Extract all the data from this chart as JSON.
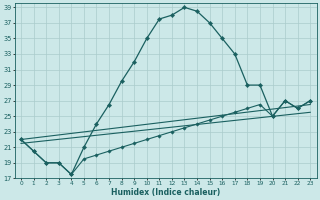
{
  "xlabel": "Humidex (Indice chaleur)",
  "bg_color": "#cce8e8",
  "grid_color": "#aacccc",
  "line_color": "#1a6060",
  "xlim": [
    -0.5,
    23.5
  ],
  "ylim": [
    17,
    39.5
  ],
  "yticks": [
    17,
    19,
    21,
    23,
    25,
    27,
    29,
    31,
    33,
    35,
    37,
    39
  ],
  "xticks": [
    0,
    1,
    2,
    3,
    4,
    5,
    6,
    7,
    8,
    9,
    10,
    11,
    12,
    13,
    14,
    15,
    16,
    17,
    18,
    19,
    20,
    21,
    22,
    23
  ],
  "line1_x": [
    0,
    1,
    2,
    3,
    4,
    5,
    6,
    7,
    8,
    9,
    10,
    11,
    12,
    13,
    14,
    15,
    16,
    17,
    18,
    19,
    20,
    21,
    22,
    23
  ],
  "line1_y": [
    22.0,
    20.5,
    19.0,
    19.0,
    17.5,
    21.0,
    24.0,
    26.5,
    29.5,
    32.0,
    35.0,
    37.5,
    38.0,
    39.0,
    38.5,
    37.0,
    35.0,
    33.0,
    29.0,
    29.0,
    25.0,
    27.0,
    26.0,
    27.0
  ],
  "line2_x": [
    0,
    1,
    2,
    3,
    4,
    5,
    6,
    7,
    8,
    9,
    10,
    11,
    12,
    13,
    14,
    15,
    16,
    17,
    18,
    19,
    20,
    21,
    22,
    23
  ],
  "line2_y": [
    22.0,
    20.5,
    19.0,
    19.0,
    17.5,
    19.5,
    20.0,
    20.5,
    21.0,
    21.5,
    22.0,
    22.5,
    23.0,
    23.5,
    24.0,
    24.5,
    25.0,
    25.5,
    26.0,
    26.5,
    25.0,
    27.0,
    26.0,
    27.0
  ],
  "line3_x": [
    0,
    23
  ],
  "line3_y": [
    22.0,
    26.5
  ],
  "line4_x": [
    0,
    23
  ],
  "line4_y": [
    21.5,
    25.5
  ]
}
